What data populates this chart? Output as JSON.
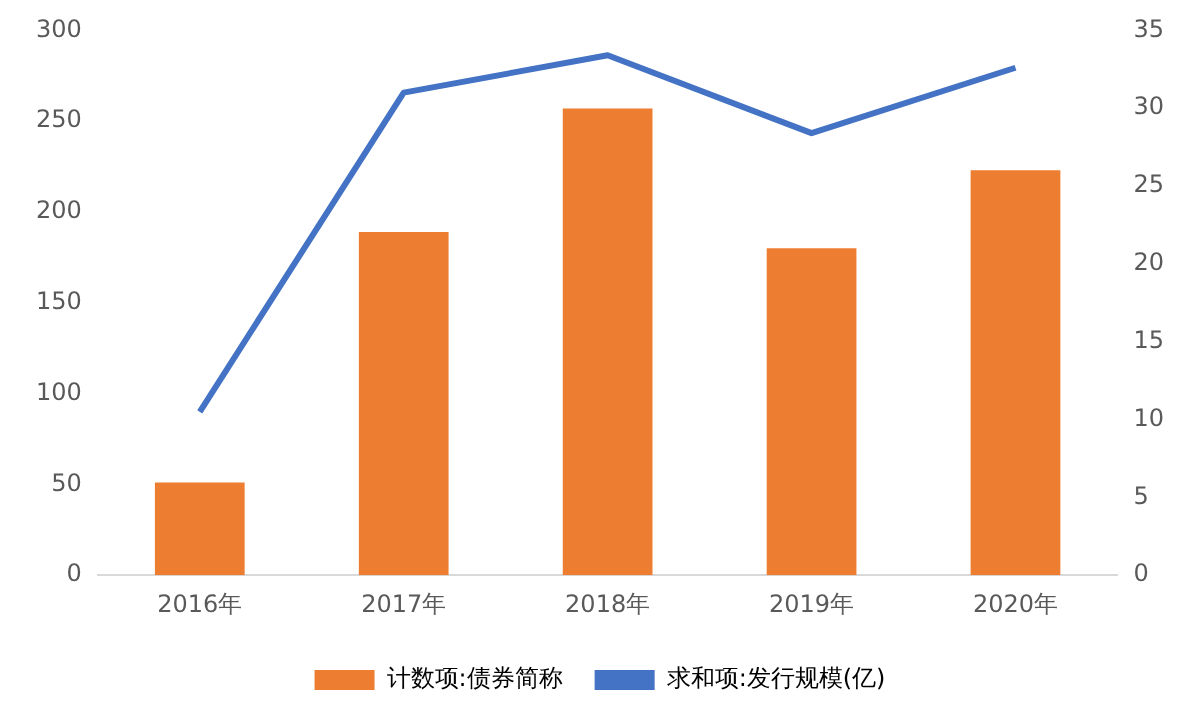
{
  "chart_data": {
    "type": "bar",
    "categories": [
      "2016年",
      "2017年",
      "2018年",
      "2019年",
      "2020年"
    ],
    "series": [
      {
        "name": "计数项:债券简称",
        "color": "#ed7d31",
        "values": [
          51,
          189,
          257,
          180,
          223
        ]
      },
      {
        "name": "求和项:发行规模(亿)",
        "type": "line",
        "axis": "y2",
        "color": "#4472c4",
        "values": [
          10.5,
          31,
          33.4,
          28.4,
          32.6
        ]
      }
    ],
    "ylim": [
      0,
      300
    ],
    "yticks": [
      0,
      50,
      100,
      150,
      200,
      250,
      300
    ],
    "y2lim": [
      0,
      35
    ],
    "y2ticks": [
      0,
      5,
      10,
      15,
      20,
      25,
      30,
      35
    ],
    "grid": false,
    "legend": "bottom",
    "marker": "none"
  }
}
